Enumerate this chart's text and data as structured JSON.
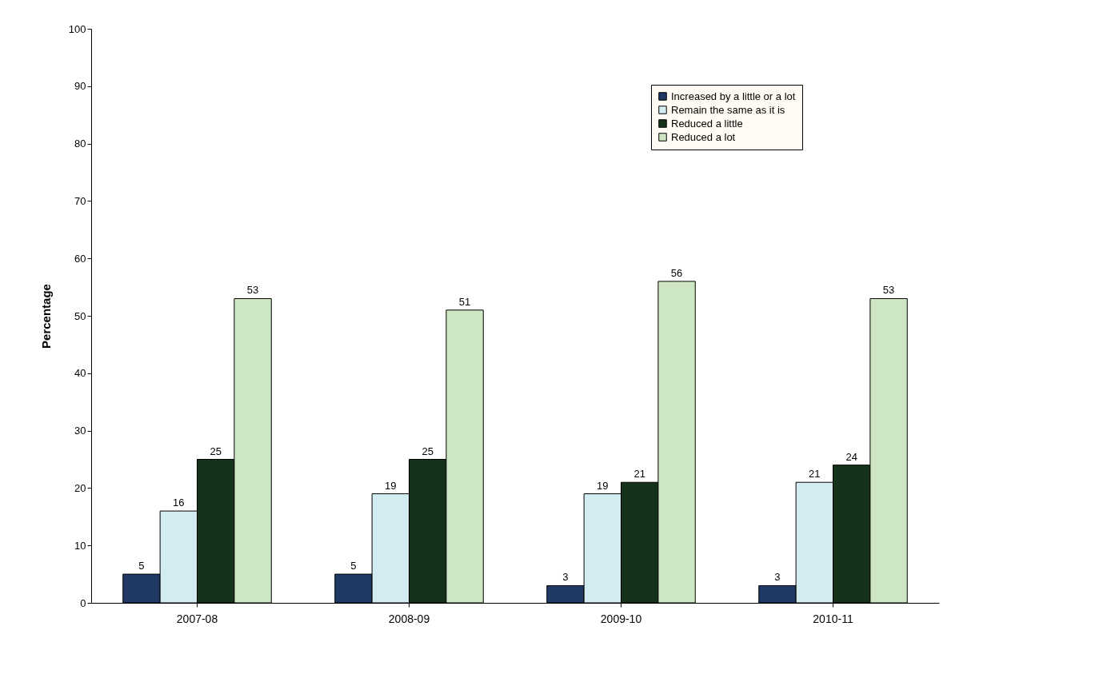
{
  "chart_data": {
    "type": "bar",
    "ylabel": "Percentage",
    "categories": [
      "2007-08",
      "2008-09",
      "2009-10",
      "2010-11"
    ],
    "series": [
      {
        "name": "Increased by a little or a lot",
        "color": "#1f3864",
        "values": [
          5,
          5,
          3,
          3
        ]
      },
      {
        "name": "Remain the same as it is",
        "color": "#d2ecf2",
        "values": [
          16,
          19,
          19,
          21
        ]
      },
      {
        "name": "Reduced a little",
        "color": "#14331a",
        "values": [
          25,
          25,
          21,
          24
        ]
      },
      {
        "name": "Reduced a lot",
        "color": "#cde6c4",
        "values": [
          53,
          51,
          56,
          53
        ]
      }
    ],
    "ylim": [
      0,
      100
    ],
    "yticks": [
      0,
      10,
      20,
      30,
      40,
      50,
      60,
      70,
      80,
      90,
      100
    ],
    "grid": false,
    "legend": "top right",
    "data_labels": true
  }
}
